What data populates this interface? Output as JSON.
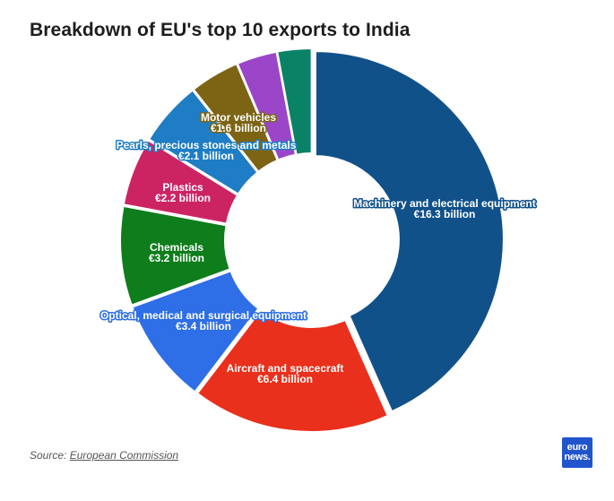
{
  "title": "Breakdown of EU's top 10 exports to India",
  "source": {
    "label": "Source:",
    "link_text": "European Commission"
  },
  "logo": {
    "line1": "euro",
    "line2": "news."
  },
  "chart_data": {
    "type": "pie",
    "variant": "donut",
    "title": "Breakdown of EU's top 10 exports to India",
    "unit": "€ billion",
    "slices": [
      {
        "label": "Machinery and electrical equipment",
        "value": 16.3,
        "value_label": "€16.3 billion",
        "color": "#11518a",
        "label_color": "#ffffff",
        "label_halo": "#11518a"
      },
      {
        "label": "Aircraft and spacecraft",
        "value": 6.4,
        "value_label": "€6.4 billion",
        "color": "#e8301c",
        "label_color": "#ffffff",
        "label_halo": "none"
      },
      {
        "label": "Optical, medical and surgical equipment",
        "value": 3.4,
        "value_label": "€3.4 billion",
        "color": "#2e6ee6",
        "label_color": "#ffffff",
        "label_halo": "#2e6ee6"
      },
      {
        "label": "Chemicals",
        "value": 3.2,
        "value_label": "€3.2 billion",
        "color": "#0e7d1c",
        "label_color": "#ffffff",
        "label_halo": "none"
      },
      {
        "label": "Plastics",
        "value": 2.2,
        "value_label": "€2.2 billion",
        "color": "#cc2463",
        "label_color": "#ffffff",
        "label_halo": "none"
      },
      {
        "label": "Pearls, precious stones and metals",
        "value": 2.1,
        "value_label": "€2.1 billion",
        "color": "#1e7dc4",
        "label_color": "#ffffff",
        "label_halo": "#1e7dc4"
      },
      {
        "label": "Motor vehicles",
        "value": 1.6,
        "value_label": "€1.6 billion",
        "color": "#7c6414",
        "label_color": "#ffffff",
        "label_halo": "#7c6414"
      },
      {
        "label": "",
        "value": 1.3,
        "value_label": "",
        "color": "#9b46c8"
      },
      {
        "label": "",
        "value": 1.1,
        "value_label": "",
        "color": "#0a8266"
      }
    ]
  }
}
